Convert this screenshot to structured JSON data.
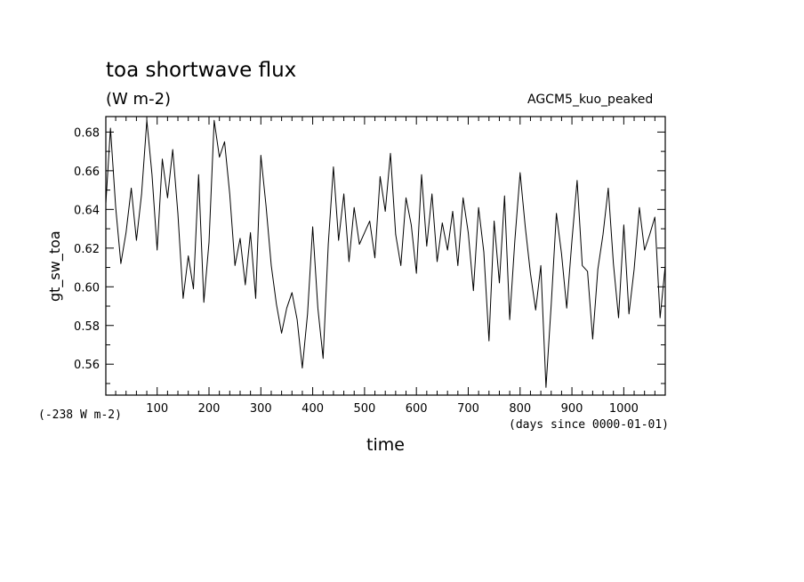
{
  "header": {
    "title": "toa shortwave flux",
    "units": "(W m-2)",
    "source": "AGCM5_kuo_peaked"
  },
  "chart_data": {
    "type": "line",
    "title": "toa shortwave flux",
    "subtitle": "(W m-2)",
    "source_label": "AGCM5_kuo_peaked",
    "xlabel": "time",
    "xlabel_units": "(days since 0000-01-01)",
    "ylabel": "gt_sw_toa",
    "y_offset_label": "(-238 W m-2)",
    "xlim": [
      1,
      1080
    ],
    "ylim": [
      0.544,
      0.688
    ],
    "xticks": [
      100,
      200,
      300,
      400,
      500,
      600,
      700,
      800,
      900,
      1000
    ],
    "xtick_labels": [
      "100",
      "200",
      "300",
      "400",
      "500",
      "600",
      "700",
      "800",
      "900",
      "1000"
    ],
    "yticks": [
      0.56,
      0.58,
      0.6,
      0.62,
      0.64,
      0.66,
      0.68
    ],
    "ytick_labels": [
      "0.56",
      "0.58",
      "0.60",
      "0.62",
      "0.64",
      "0.66",
      "0.68"
    ],
    "grid": false,
    "line_color": "#000000",
    "series": [
      {
        "x": [
          1,
          10,
          20,
          30,
          40,
          50,
          60,
          70,
          80,
          90,
          100,
          110,
          120,
          130,
          140,
          150,
          160,
          170,
          180,
          190,
          200,
          210,
          220,
          230,
          240,
          250,
          260,
          270,
          280,
          290,
          300,
          310,
          320,
          330,
          340,
          350,
          360,
          370,
          380,
          390,
          400,
          410,
          420,
          430,
          440,
          450,
          460,
          470,
          480,
          490,
          500,
          510,
          520,
          530,
          540,
          550,
          560,
          570,
          580,
          590,
          600,
          610,
          620,
          630,
          640,
          650,
          660,
          670,
          680,
          690,
          700,
          710,
          720,
          730,
          740,
          750,
          760,
          770,
          780,
          790,
          800,
          810,
          820,
          830,
          840,
          850,
          860,
          870,
          880,
          890,
          900,
          910,
          920,
          930,
          940,
          950,
          960,
          970,
          980,
          990,
          1000,
          1010,
          1020,
          1030,
          1040,
          1050,
          1060,
          1070,
          1080
        ],
        "y": [
          0.643,
          0.682,
          0.641,
          0.612,
          0.628,
          0.651,
          0.624,
          0.648,
          0.686,
          0.658,
          0.619,
          0.666,
          0.646,
          0.671,
          0.638,
          0.594,
          0.616,
          0.599,
          0.658,
          0.592,
          0.623,
          0.686,
          0.667,
          0.675,
          0.648,
          0.611,
          0.625,
          0.601,
          0.628,
          0.594,
          0.668,
          0.642,
          0.611,
          0.591,
          0.576,
          0.589,
          0.597,
          0.583,
          0.558,
          0.586,
          0.631,
          0.589,
          0.563,
          0.622,
          0.662,
          0.624,
          0.648,
          0.613,
          0.641,
          0.622,
          0.628,
          0.634,
          0.615,
          0.657,
          0.639,
          0.669,
          0.627,
          0.611,
          0.646,
          0.632,
          0.607,
          0.658,
          0.621,
          0.648,
          0.613,
          0.633,
          0.619,
          0.639,
          0.611,
          0.646,
          0.628,
          0.598,
          0.641,
          0.618,
          0.572,
          0.634,
          0.602,
          0.647,
          0.583,
          0.624,
          0.659,
          0.631,
          0.607,
          0.588,
          0.611,
          0.548,
          0.591,
          0.638,
          0.617,
          0.589,
          0.624,
          0.655,
          0.611,
          0.608,
          0.573,
          0.609,
          0.627,
          0.651,
          0.612,
          0.584,
          0.632,
          0.586,
          0.609,
          0.641,
          0.619,
          0.627,
          0.636,
          0.584,
          0.611
        ]
      }
    ]
  }
}
